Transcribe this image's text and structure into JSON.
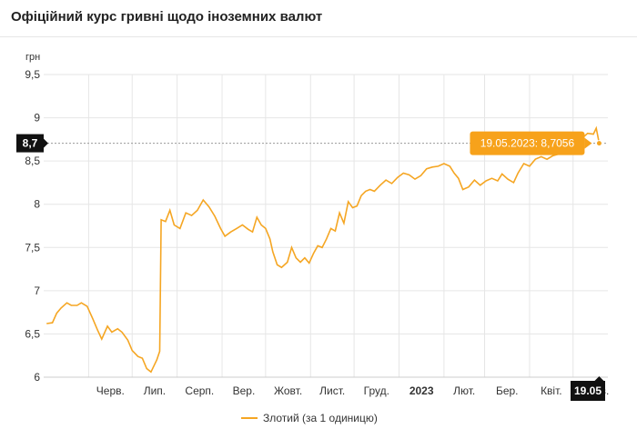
{
  "header": {
    "title": "Офіційний курс гривні щодо іноземних валют"
  },
  "colors": {
    "series": "#f5a623",
    "tooltip": "#f7a21b",
    "badge": "#111111",
    "grid": "#e6e6e6"
  },
  "chart_data": {
    "type": "line",
    "title": "Офіційний курс гривні щодо іноземних валют",
    "ylabel": "грн",
    "ylim": [
      6,
      9.5
    ],
    "y_ticks": [
      "9,5",
      "9",
      "8,5",
      "8",
      "7,5",
      "7",
      "6,5",
      "6"
    ],
    "x_ticks": [
      "Черв.",
      "Лип.",
      "Серп.",
      "Вер.",
      "Жовт.",
      "Лист.",
      "Груд.",
      "2023",
      "Лют.",
      "Бер.",
      "Квіт.",
      "Трав."
    ],
    "x_range": [
      "2022-05-01",
      "2023-05-25"
    ],
    "series": [
      {
        "name": "Злотий (за 1 одиницю)",
        "points": [
          [
            "2022-05-03",
            6.62
          ],
          [
            "2022-05-07",
            6.63
          ],
          [
            "2022-05-10",
            6.74
          ],
          [
            "2022-05-13",
            6.8
          ],
          [
            "2022-05-17",
            6.86
          ],
          [
            "2022-05-20",
            6.83
          ],
          [
            "2022-05-24",
            6.83
          ],
          [
            "2022-05-27",
            6.86
          ],
          [
            "2022-05-31",
            6.82
          ],
          [
            "2022-06-04",
            6.67
          ],
          [
            "2022-06-07",
            6.55
          ],
          [
            "2022-06-10",
            6.44
          ],
          [
            "2022-06-14",
            6.59
          ],
          [
            "2022-06-17",
            6.52
          ],
          [
            "2022-06-21",
            6.56
          ],
          [
            "2022-06-24",
            6.52
          ],
          [
            "2022-06-28",
            6.43
          ],
          [
            "2022-07-01",
            6.31
          ],
          [
            "2022-07-05",
            6.24
          ],
          [
            "2022-07-08",
            6.22
          ],
          [
            "2022-07-11",
            6.1
          ],
          [
            "2022-07-14",
            6.06
          ],
          [
            "2022-07-18",
            6.2
          ],
          [
            "2022-07-20",
            6.3
          ],
          [
            "2022-07-21",
            7.82
          ],
          [
            "2022-07-24",
            7.8
          ],
          [
            "2022-07-27",
            7.93
          ],
          [
            "2022-07-30",
            7.76
          ],
          [
            "2022-08-03",
            7.72
          ],
          [
            "2022-08-07",
            7.9
          ],
          [
            "2022-08-11",
            7.87
          ],
          [
            "2022-08-15",
            7.93
          ],
          [
            "2022-08-19",
            8.05
          ],
          [
            "2022-08-23",
            7.97
          ],
          [
            "2022-08-27",
            7.86
          ],
          [
            "2022-08-31",
            7.72
          ],
          [
            "2022-09-03",
            7.63
          ],
          [
            "2022-09-07",
            7.68
          ],
          [
            "2022-09-11",
            7.72
          ],
          [
            "2022-09-15",
            7.76
          ],
          [
            "2022-09-19",
            7.71
          ],
          [
            "2022-09-22",
            7.68
          ],
          [
            "2022-09-25",
            7.85
          ],
          [
            "2022-09-28",
            7.76
          ],
          [
            "2022-10-01",
            7.72
          ],
          [
            "2022-10-04",
            7.6
          ],
          [
            "2022-10-06",
            7.45
          ],
          [
            "2022-10-09",
            7.3
          ],
          [
            "2022-10-12",
            7.27
          ],
          [
            "2022-10-16",
            7.33
          ],
          [
            "2022-10-19",
            7.5
          ],
          [
            "2022-10-22",
            7.38
          ],
          [
            "2022-10-25",
            7.33
          ],
          [
            "2022-10-28",
            7.38
          ],
          [
            "2022-10-31",
            7.32
          ],
          [
            "2022-11-03",
            7.43
          ],
          [
            "2022-11-06",
            7.52
          ],
          [
            "2022-11-09",
            7.5
          ],
          [
            "2022-11-12",
            7.6
          ],
          [
            "2022-11-15",
            7.72
          ],
          [
            "2022-11-18",
            7.69
          ],
          [
            "2022-11-21",
            7.9
          ],
          [
            "2022-11-24",
            7.78
          ],
          [
            "2022-11-27",
            8.03
          ],
          [
            "2022-11-30",
            7.96
          ],
          [
            "2022-12-03",
            7.98
          ],
          [
            "2022-12-06",
            8.1
          ],
          [
            "2022-12-09",
            8.15
          ],
          [
            "2022-12-12",
            8.17
          ],
          [
            "2022-12-15",
            8.15
          ],
          [
            "2022-12-19",
            8.22
          ],
          [
            "2022-12-23",
            8.28
          ],
          [
            "2022-12-27",
            8.24
          ],
          [
            "2022-12-31",
            8.31
          ],
          [
            "2023-01-04",
            8.36
          ],
          [
            "2023-01-08",
            8.34
          ],
          [
            "2023-01-12",
            8.29
          ],
          [
            "2023-01-16",
            8.33
          ],
          [
            "2023-01-20",
            8.41
          ],
          [
            "2023-01-24",
            8.43
          ],
          [
            "2023-01-28",
            8.44
          ],
          [
            "2023-02-01",
            8.47
          ],
          [
            "2023-02-05",
            8.44
          ],
          [
            "2023-02-08",
            8.36
          ],
          [
            "2023-02-11",
            8.3
          ],
          [
            "2023-02-14",
            8.17
          ],
          [
            "2023-02-18",
            8.2
          ],
          [
            "2023-02-22",
            8.28
          ],
          [
            "2023-02-26",
            8.22
          ],
          [
            "2023-03-02",
            8.27
          ],
          [
            "2023-03-06",
            8.3
          ],
          [
            "2023-03-10",
            8.27
          ],
          [
            "2023-03-13",
            8.35
          ],
          [
            "2023-03-17",
            8.29
          ],
          [
            "2023-03-21",
            8.25
          ],
          [
            "2023-03-24",
            8.36
          ],
          [
            "2023-03-28",
            8.47
          ],
          [
            "2023-04-01",
            8.44
          ],
          [
            "2023-04-05",
            8.52
          ],
          [
            "2023-04-09",
            8.55
          ],
          [
            "2023-04-13",
            8.52
          ],
          [
            "2023-04-17",
            8.56
          ],
          [
            "2023-04-21",
            8.58
          ],
          [
            "2023-04-25",
            8.66
          ],
          [
            "2023-04-29",
            8.7
          ],
          [
            "2023-05-03",
            8.77
          ],
          [
            "2023-05-07",
            8.76
          ],
          [
            "2023-05-11",
            8.82
          ],
          [
            "2023-05-15",
            8.81
          ],
          [
            "2023-05-17",
            8.88
          ],
          [
            "2023-05-19",
            8.71
          ]
        ]
      }
    ],
    "tooltip": {
      "label": "19.05.2023: 8,7056"
    },
    "crosshair": {
      "x": "2023-05-19",
      "y": 8.7056,
      "y_label": "8,7",
      "x_label": "19.05"
    },
    "legend": {
      "position": "bottom-center"
    },
    "grid": true
  }
}
